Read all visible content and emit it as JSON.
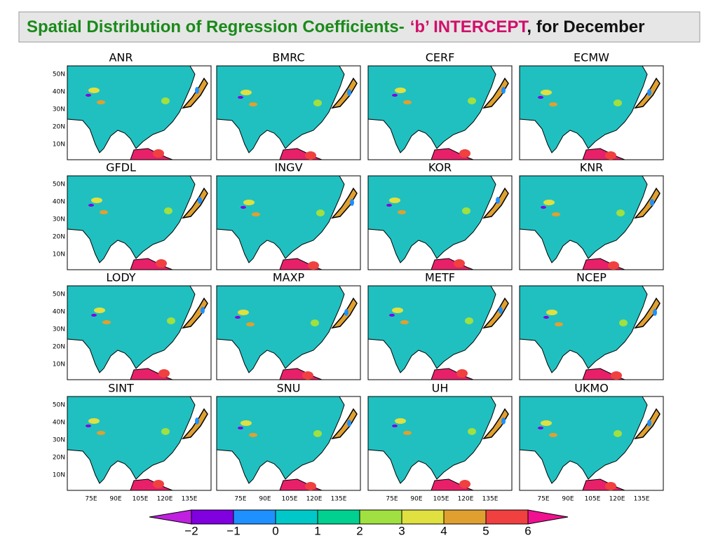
{
  "header": {
    "title_part1": "Spatial Distribution of Regression Coefficients-",
    "title_part2": "‘b’ INTERCEPT",
    "title_part3": ", for  December"
  },
  "panels": [
    "ANR",
    "BMRC",
    "CERF",
    "ECMW",
    "GFDL",
    "INGV",
    "KOR",
    "KNR",
    "LODY",
    "MAXP",
    "METF",
    "NCEP",
    "SINT",
    "SNU",
    "UH",
    "UKMO"
  ],
  "lat_labels": [
    "50N",
    "40N",
    "30N",
    "20N",
    "10N"
  ],
  "lon_labels": [
    "75E",
    "90E",
    "105E",
    "120E",
    "135E"
  ],
  "colorbar_labels": [
    "−2",
    "−1",
    "0",
    "1",
    "2",
    "3",
    "4",
    "5",
    "6"
  ]
}
